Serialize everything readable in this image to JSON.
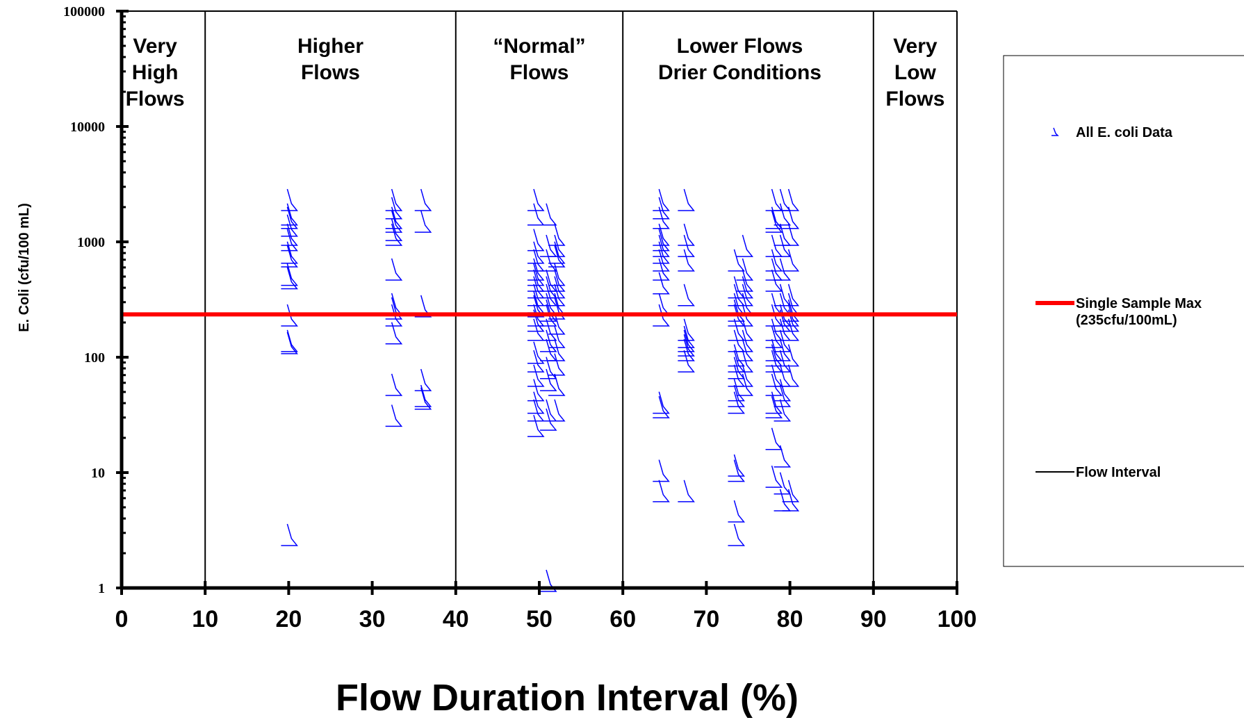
{
  "chart_data": {
    "type": "scatter",
    "title": "",
    "xlabel": "Flow Duration Interval (%)",
    "ylabel": "E. Coli (cfu/100 mL)",
    "xlim": [
      0,
      100
    ],
    "ylim": [
      1,
      100000
    ],
    "yscale": "log",
    "xticks": [
      "0",
      "10",
      "20",
      "30",
      "40",
      "50",
      "60",
      "70",
      "80",
      "90",
      "100"
    ],
    "yticks": [
      "1",
      "10",
      "100",
      "1000",
      "10000",
      "100000"
    ],
    "flow_intervals": [
      10,
      40,
      60,
      90
    ],
    "regions": [
      {
        "lines": [
          "Very",
          "High",
          "Flows"
        ],
        "x": 4
      },
      {
        "lines": [
          "Higher",
          "Flows"
        ],
        "x": 25
      },
      {
        "lines": [
          "“Normal”",
          "Flows"
        ],
        "x": 50
      },
      {
        "lines": [
          "Lower Flows",
          "Drier Conditions"
        ],
        "x": 74
      },
      {
        "lines": [
          "Very",
          "Low",
          "Flows"
        ],
        "x": 95
      }
    ],
    "reference_line": {
      "name": "Single Sample Max (235cfu/100mL)",
      "value": 235,
      "color": "#ff0000"
    },
    "series": [
      {
        "name": "All E. coli Data",
        "color": "#0000ff",
        "points": [
          [
            20,
            2000
          ],
          [
            20,
            1500
          ],
          [
            20,
            1400
          ],
          [
            20,
            1200
          ],
          [
            20,
            1000
          ],
          [
            20,
            900
          ],
          [
            20,
            700
          ],
          [
            20,
            650
          ],
          [
            20,
            450
          ],
          [
            20,
            420
          ],
          [
            20,
            200
          ],
          [
            20,
            120
          ],
          [
            20,
            115
          ],
          [
            20,
            2.5
          ],
          [
            32.5,
            2000
          ],
          [
            32.5,
            1700
          ],
          [
            32.5,
            1400
          ],
          [
            32.5,
            1300
          ],
          [
            32.5,
            1100
          ],
          [
            32.5,
            1000
          ],
          [
            32.5,
            500
          ],
          [
            32.5,
            250
          ],
          [
            32.5,
            230
          ],
          [
            32.5,
            200
          ],
          [
            32.5,
            140
          ],
          [
            32.5,
            50
          ],
          [
            32.5,
            27
          ],
          [
            36,
            2000
          ],
          [
            36,
            1300
          ],
          [
            36,
            240
          ],
          [
            36,
            55
          ],
          [
            36,
            40
          ],
          [
            36,
            38
          ],
          [
            49.5,
            2000
          ],
          [
            49.5,
            1500
          ],
          [
            49.5,
            900
          ],
          [
            49.5,
            700
          ],
          [
            49.5,
            600
          ],
          [
            49.5,
            500
          ],
          [
            49.5,
            450
          ],
          [
            49.5,
            400
          ],
          [
            49.5,
            350
          ],
          [
            49.5,
            300
          ],
          [
            49.5,
            260
          ],
          [
            49.5,
            240
          ],
          [
            49.5,
            200
          ],
          [
            49.5,
            180
          ],
          [
            49.5,
            150
          ],
          [
            49.5,
            95
          ],
          [
            49.5,
            80
          ],
          [
            49.5,
            60
          ],
          [
            49.5,
            45
          ],
          [
            49.5,
            35
          ],
          [
            49.5,
            30
          ],
          [
            49.5,
            22
          ],
          [
            51,
            1500
          ],
          [
            51,
            800
          ],
          [
            51,
            600
          ],
          [
            51,
            400
          ],
          [
            51,
            350
          ],
          [
            51,
            300
          ],
          [
            51,
            250
          ],
          [
            51,
            220
          ],
          [
            51,
            200
          ],
          [
            51,
            150
          ],
          [
            51,
            120
          ],
          [
            51,
            100
          ],
          [
            51,
            70
          ],
          [
            51,
            55
          ],
          [
            51,
            30
          ],
          [
            51,
            25
          ],
          [
            51,
            1
          ],
          [
            52,
            1000
          ],
          [
            52,
            800
          ],
          [
            52,
            700
          ],
          [
            52,
            650
          ],
          [
            52,
            450
          ],
          [
            52,
            400
          ],
          [
            52,
            350
          ],
          [
            52,
            300
          ],
          [
            52,
            250
          ],
          [
            52,
            230
          ],
          [
            52,
            170
          ],
          [
            52,
            130
          ],
          [
            52,
            100
          ],
          [
            52,
            75
          ],
          [
            52,
            50
          ],
          [
            52,
            30
          ],
          [
            64.5,
            2000
          ],
          [
            64.5,
            1700
          ],
          [
            64.5,
            1400
          ],
          [
            64.5,
            1000
          ],
          [
            64.5,
            900
          ],
          [
            64.5,
            800
          ],
          [
            64.5,
            700
          ],
          [
            64.5,
            600
          ],
          [
            64.5,
            500
          ],
          [
            64.5,
            380
          ],
          [
            64.5,
            250
          ],
          [
            64.5,
            200
          ],
          [
            64.5,
            35
          ],
          [
            64.5,
            32
          ],
          [
            64.5,
            9
          ],
          [
            64.5,
            6
          ],
          [
            67.5,
            2000
          ],
          [
            67.5,
            1000
          ],
          [
            67.5,
            800
          ],
          [
            67.5,
            600
          ],
          [
            67.5,
            300
          ],
          [
            67.5,
            150
          ],
          [
            67.5,
            130
          ],
          [
            67.5,
            120
          ],
          [
            67.5,
            110
          ],
          [
            67.5,
            100
          ],
          [
            67.5,
            80
          ],
          [
            67.5,
            6
          ],
          [
            73.5,
            600
          ],
          [
            73.5,
            350
          ],
          [
            73.5,
            300
          ],
          [
            73.5,
            250
          ],
          [
            73.5,
            220
          ],
          [
            73.5,
            200
          ],
          [
            73.5,
            150
          ],
          [
            73.5,
            120
          ],
          [
            73.5,
            90
          ],
          [
            73.5,
            80
          ],
          [
            73.5,
            70
          ],
          [
            73.5,
            60
          ],
          [
            73.5,
            45
          ],
          [
            73.5,
            40
          ],
          [
            73.5,
            35
          ],
          [
            73.5,
            10
          ],
          [
            73.5,
            9
          ],
          [
            73.5,
            4
          ],
          [
            73.5,
            2.5
          ],
          [
            74.5,
            800
          ],
          [
            74.5,
            500
          ],
          [
            74.5,
            400
          ],
          [
            74.5,
            350
          ],
          [
            74.5,
            300
          ],
          [
            74.5,
            250
          ],
          [
            74.5,
            200
          ],
          [
            74.5,
            150
          ],
          [
            74.5,
            120
          ],
          [
            74.5,
            100
          ],
          [
            74.5,
            80
          ],
          [
            74.5,
            60
          ],
          [
            74.5,
            50
          ],
          [
            78,
            2000
          ],
          [
            78,
            1400
          ],
          [
            78,
            1300
          ],
          [
            78,
            800
          ],
          [
            78,
            600
          ],
          [
            78,
            500
          ],
          [
            78,
            400
          ],
          [
            78,
            250
          ],
          [
            78,
            200
          ],
          [
            78,
            150
          ],
          [
            78,
            130
          ],
          [
            78,
            100
          ],
          [
            78,
            90
          ],
          [
            78,
            80
          ],
          [
            78,
            60
          ],
          [
            78,
            50
          ],
          [
            78,
            35
          ],
          [
            78,
            32
          ],
          [
            78,
            17
          ],
          [
            78,
            8
          ],
          [
            79,
            2000
          ],
          [
            79,
            1500
          ],
          [
            79,
            1000
          ],
          [
            79,
            800
          ],
          [
            79,
            500
          ],
          [
            79,
            300
          ],
          [
            79,
            250
          ],
          [
            79,
            200
          ],
          [
            79,
            180
          ],
          [
            79,
            150
          ],
          [
            79,
            120
          ],
          [
            79,
            100
          ],
          [
            79,
            80
          ],
          [
            79,
            60
          ],
          [
            79,
            45
          ],
          [
            79,
            40
          ],
          [
            79,
            30
          ],
          [
            79,
            12
          ],
          [
            79,
            7
          ],
          [
            79,
            5
          ],
          [
            80,
            2000
          ],
          [
            80,
            1400
          ],
          [
            80,
            1000
          ],
          [
            80,
            600
          ],
          [
            80,
            300
          ],
          [
            80,
            250
          ],
          [
            80,
            220
          ],
          [
            80,
            200
          ],
          [
            80,
            180
          ],
          [
            80,
            150
          ],
          [
            80,
            90
          ],
          [
            80,
            60
          ],
          [
            80,
            6
          ],
          [
            80,
            5
          ]
        ]
      }
    ],
    "legend": {
      "placement": "right",
      "entries": [
        {
          "label": "All E. coli Data",
          "kind": "marker"
        },
        {
          "label": "Single Sample Max",
          "label2": "(235cfu/100mL)",
          "kind": "thick-line"
        },
        {
          "label": "Flow Interval",
          "kind": "line"
        }
      ]
    },
    "grid": false
  }
}
